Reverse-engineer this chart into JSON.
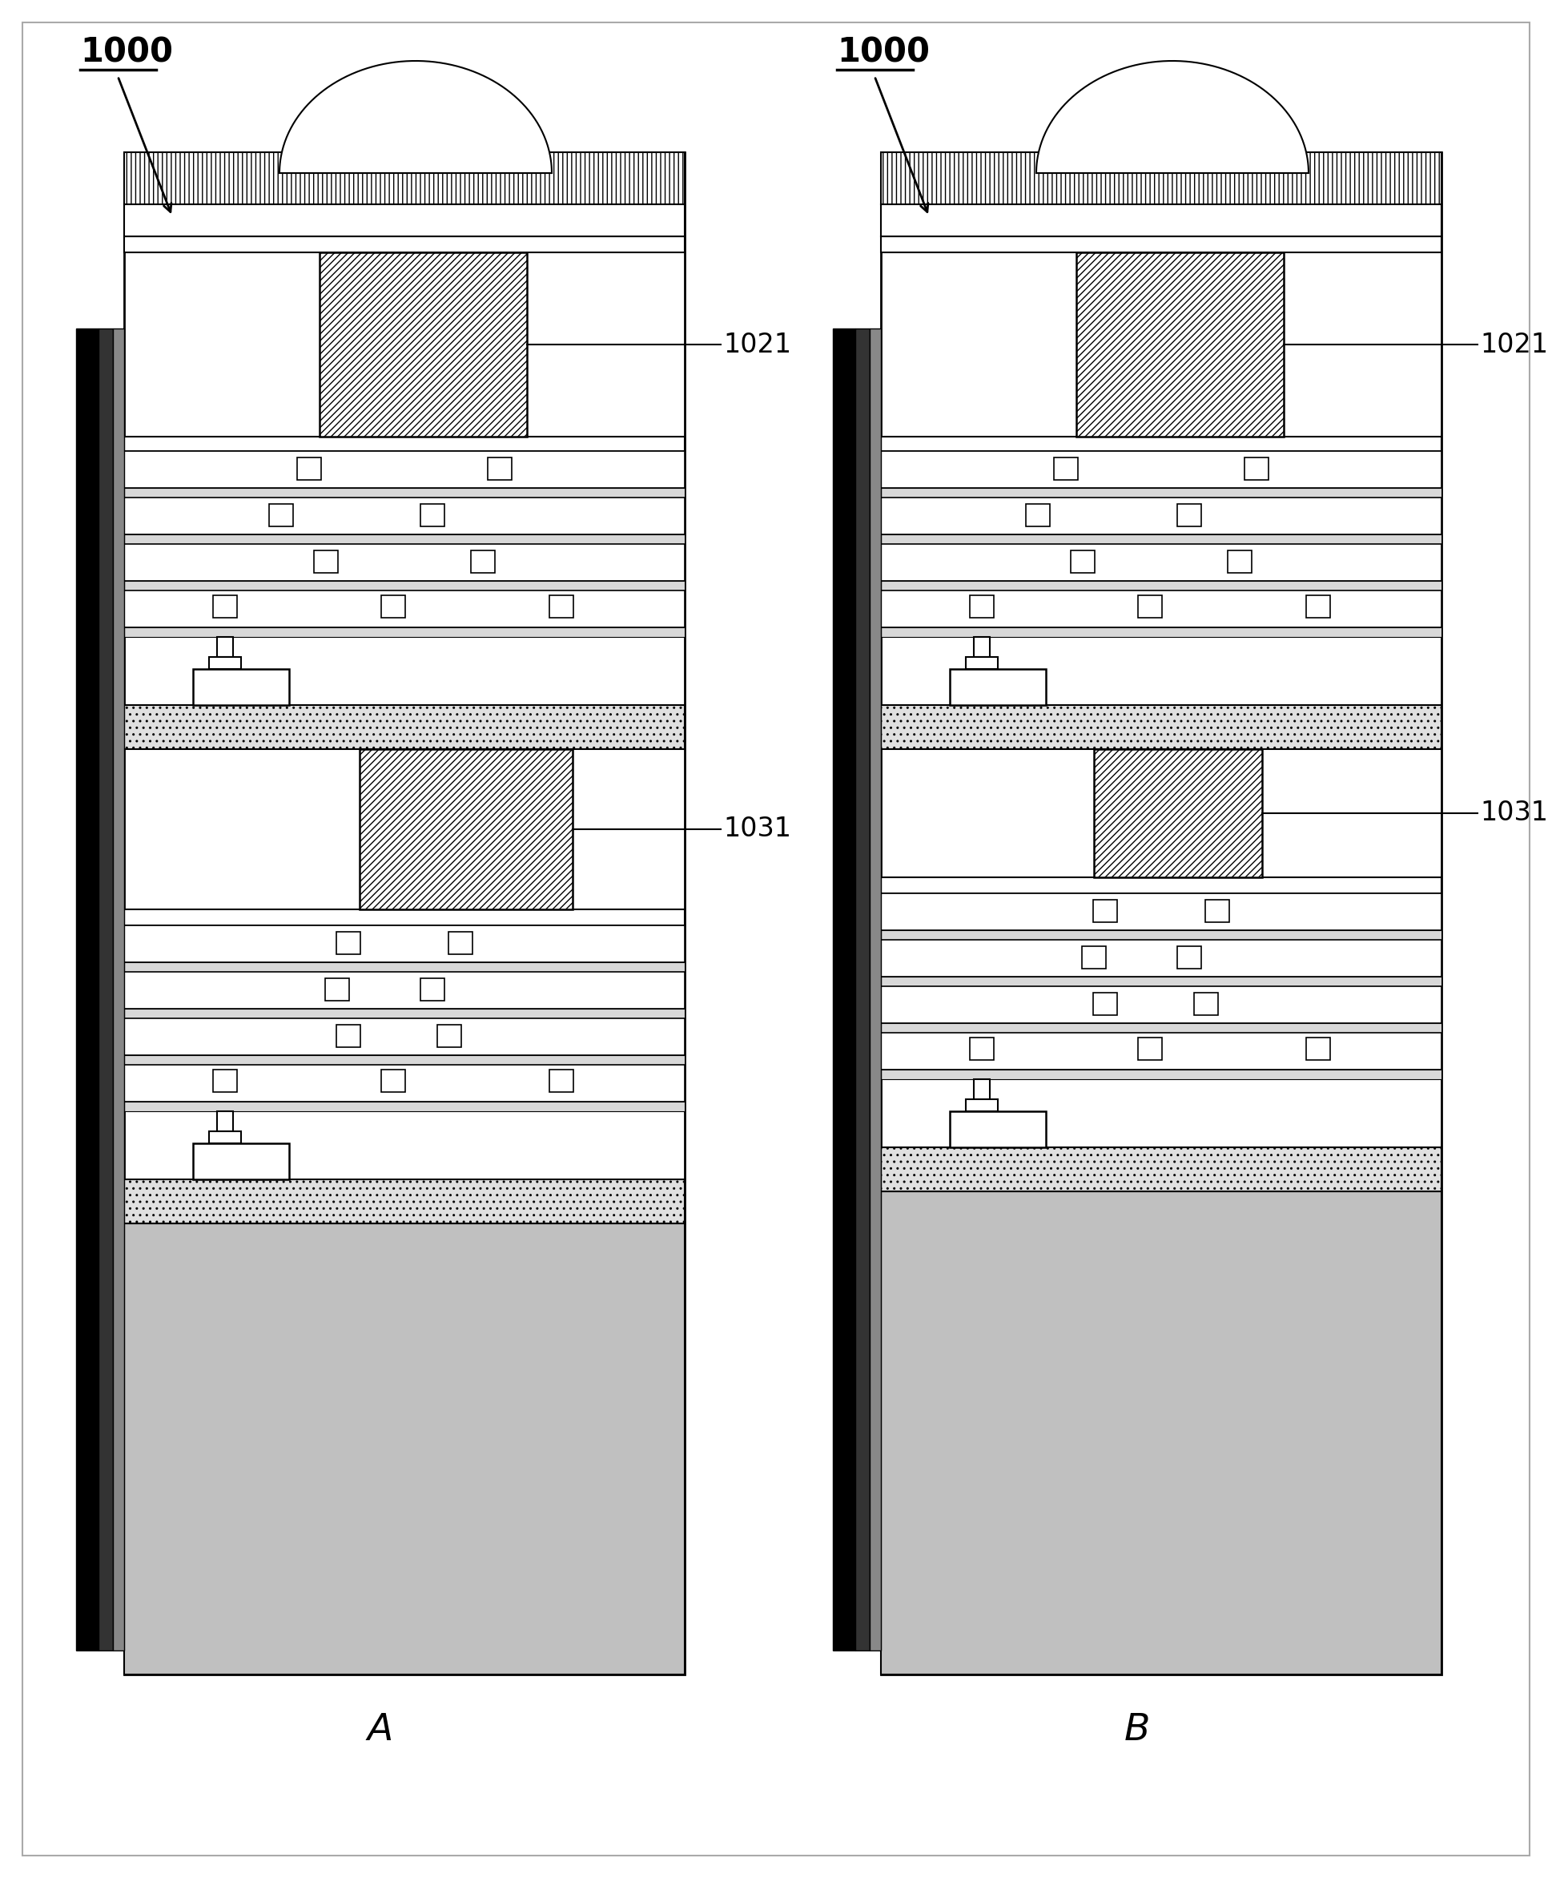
{
  "bg_color": "#ffffff",
  "fig_width": 19.38,
  "fig_height": 23.44,
  "label_1000": "1000",
  "label_1021": "1021",
  "label_1031": "1031",
  "panel_A": "A",
  "panel_B": "B"
}
